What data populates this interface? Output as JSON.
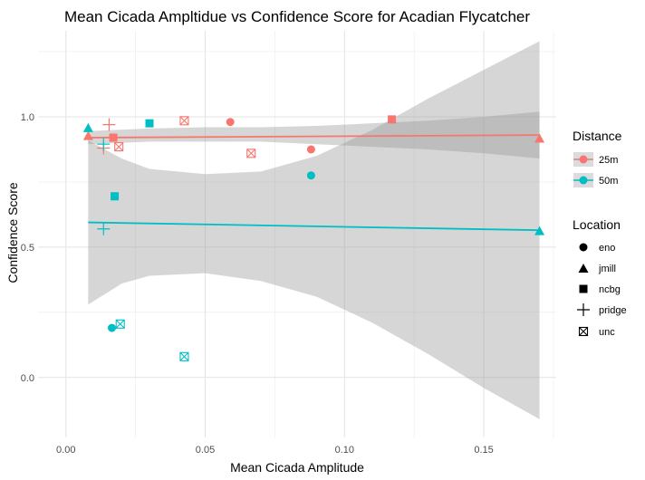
{
  "chart_data": {
    "type": "scatter",
    "title": "Mean Cicada Ampltidue vs Confidence Score for Acadian Flycatcher",
    "xlabel": "Mean Cicada Amplitude",
    "ylabel": "Confidence Score",
    "xlim": [
      -0.01,
      0.176
    ],
    "ylim": [
      -0.23,
      1.33
    ],
    "x_ticks": [
      0.0,
      0.05,
      0.1,
      0.15
    ],
    "x_tick_labels": [
      "0.00",
      "0.05",
      "0.10",
      "0.15"
    ],
    "y_ticks": [
      0.0,
      0.5,
      1.0
    ],
    "y_tick_labels": [
      "0.0",
      "0.5",
      "1.0"
    ],
    "grid": true,
    "colors": {
      "25m": "#F8766D",
      "50m": "#00BFC4",
      "ribbon": "#999999"
    },
    "legend_distance": {
      "title": "Distance",
      "items": [
        "25m",
        "50m"
      ]
    },
    "legend_location": {
      "title": "Location",
      "items": [
        "eno",
        "jmill",
        "ncbg",
        "pridge",
        "unc"
      ]
    },
    "shapes": {
      "eno": "circle",
      "jmill": "triangle",
      "ncbg": "square",
      "pridge": "plus",
      "unc": "boxcross"
    },
    "points": [
      {
        "x": 0.059,
        "y": 0.98,
        "distance": "25m",
        "location": "eno"
      },
      {
        "x": 0.088,
        "y": 0.875,
        "distance": "25m",
        "location": "eno"
      },
      {
        "x": 0.008,
        "y": 0.925,
        "distance": "25m",
        "location": "jmill"
      },
      {
        "x": 0.17,
        "y": 0.915,
        "distance": "25m",
        "location": "jmill"
      },
      {
        "x": 0.017,
        "y": 0.92,
        "distance": "25m",
        "location": "ncbg"
      },
      {
        "x": 0.117,
        "y": 0.99,
        "distance": "25m",
        "location": "ncbg"
      },
      {
        "x": 0.0155,
        "y": 0.97,
        "distance": "25m",
        "location": "pridge"
      },
      {
        "x": 0.0135,
        "y": 0.88,
        "distance": "25m",
        "location": "pridge"
      },
      {
        "x": 0.0425,
        "y": 0.985,
        "distance": "25m",
        "location": "unc"
      },
      {
        "x": 0.0665,
        "y": 0.86,
        "distance": "25m",
        "location": "unc"
      },
      {
        "x": 0.019,
        "y": 0.885,
        "distance": "25m",
        "location": "unc"
      },
      {
        "x": 0.088,
        "y": 0.775,
        "distance": "50m",
        "location": "eno"
      },
      {
        "x": 0.0165,
        "y": 0.19,
        "distance": "50m",
        "location": "eno"
      },
      {
        "x": 0.008,
        "y": 0.955,
        "distance": "50m",
        "location": "jmill"
      },
      {
        "x": 0.17,
        "y": 0.56,
        "distance": "50m",
        "location": "jmill"
      },
      {
        "x": 0.03,
        "y": 0.975,
        "distance": "50m",
        "location": "ncbg"
      },
      {
        "x": 0.0175,
        "y": 0.695,
        "distance": "50m",
        "location": "ncbg"
      },
      {
        "x": 0.0135,
        "y": 0.57,
        "distance": "50m",
        "location": "pridge"
      },
      {
        "x": 0.0135,
        "y": 0.895,
        "distance": "50m",
        "location": "pridge"
      },
      {
        "x": 0.0195,
        "y": 0.205,
        "distance": "50m",
        "location": "unc"
      },
      {
        "x": 0.0425,
        "y": 0.08,
        "distance": "50m",
        "location": "unc"
      }
    ],
    "fit_lines": [
      {
        "distance": "25m",
        "x": [
          0.008,
          0.17
        ],
        "y": [
          0.92,
          0.93
        ]
      },
      {
        "distance": "50m",
        "x": [
          0.008,
          0.17
        ],
        "y": [
          0.595,
          0.565
        ]
      }
    ],
    "confidence_bands": [
      {
        "distance": "25m",
        "x": [
          0.008,
          0.03,
          0.05,
          0.07,
          0.09,
          0.11,
          0.13,
          0.15,
          0.17
        ],
        "lower": [
          0.895,
          0.905,
          0.905,
          0.905,
          0.895,
          0.885,
          0.875,
          0.86,
          0.84
        ],
        "upper": [
          0.945,
          0.955,
          0.96,
          0.96,
          0.965,
          0.975,
          0.985,
          1.0,
          1.02
        ]
      },
      {
        "distance": "50m",
        "x": [
          0.008,
          0.02,
          0.03,
          0.05,
          0.07,
          0.09,
          0.11,
          0.13,
          0.15,
          0.17
        ],
        "lower": [
          0.28,
          0.36,
          0.39,
          0.4,
          0.37,
          0.31,
          0.21,
          0.09,
          -0.04,
          -0.16
        ],
        "upper": [
          0.91,
          0.84,
          0.8,
          0.78,
          0.79,
          0.85,
          0.95,
          1.07,
          1.18,
          1.29
        ]
      }
    ]
  }
}
